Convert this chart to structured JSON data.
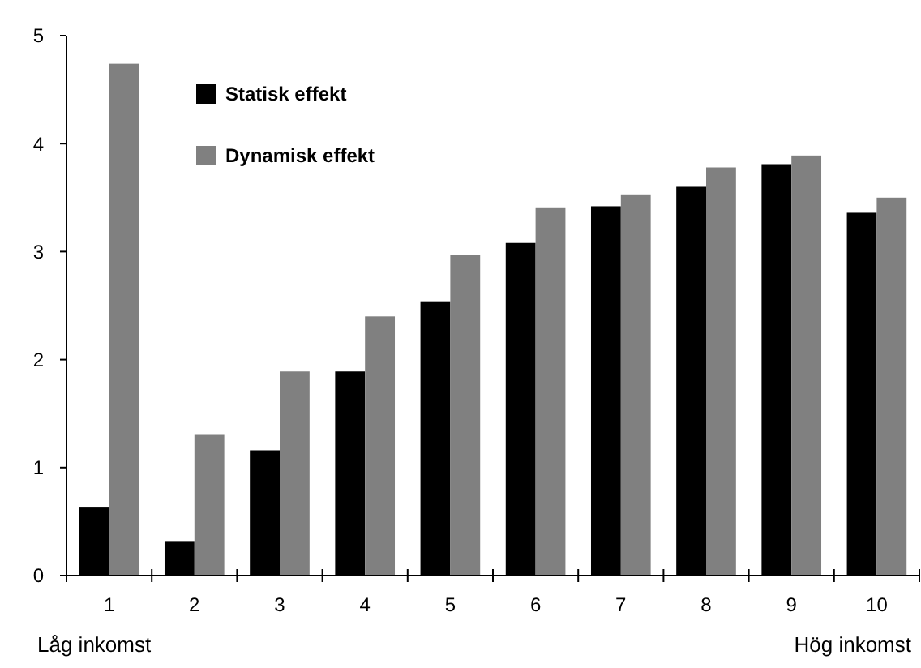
{
  "chart_data": {
    "type": "bar",
    "categories": [
      "1",
      "2",
      "3",
      "4",
      "5",
      "6",
      "7",
      "8",
      "9",
      "10"
    ],
    "series": [
      {
        "name": "Statisk effekt",
        "color": "#000000",
        "values": [
          0.63,
          0.32,
          1.16,
          1.89,
          2.54,
          3.08,
          3.42,
          3.6,
          3.81,
          3.36
        ]
      },
      {
        "name": "Dynamisk effekt",
        "color": "#808080",
        "values": [
          4.74,
          1.31,
          1.89,
          2.4,
          2.97,
          3.41,
          3.53,
          3.78,
          3.89,
          3.5
        ]
      }
    ],
    "ylim": [
      0,
      5
    ],
    "yticks": [
      0,
      1,
      2,
      3,
      4,
      5
    ],
    "grid": false,
    "legend": "top left",
    "annotations": [
      "Låg inkomst",
      "Hög inkomst"
    ]
  }
}
